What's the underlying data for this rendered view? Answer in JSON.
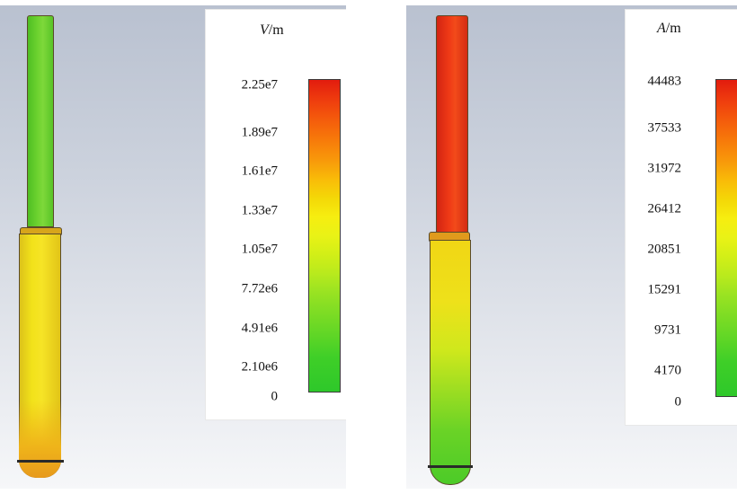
{
  "left_panel": {
    "legend": {
      "title_symbol": "V",
      "title_unit": "/m",
      "ticks": [
        "2.25e7",
        "1.89e7",
        "1.61e7",
        "1.33e7",
        "1.05e7",
        "7.72e6",
        "4.91e6",
        "2.10e6",
        "0"
      ]
    },
    "colormap": [
      "#e21c0e",
      "#f89a0a",
      "#f6ee10",
      "#9ae322",
      "#2ec82a"
    ]
  },
  "right_panel": {
    "legend": {
      "title_symbol": "A",
      "title_unit": "/m",
      "ticks": [
        "44483",
        "37533",
        "31972",
        "26412",
        "20851",
        "15291",
        "9731",
        "4170",
        "0"
      ]
    },
    "colormap": [
      "#e21c0e",
      "#f89a0a",
      "#f6ee10",
      "#9ae322",
      "#2ec82a"
    ]
  }
}
